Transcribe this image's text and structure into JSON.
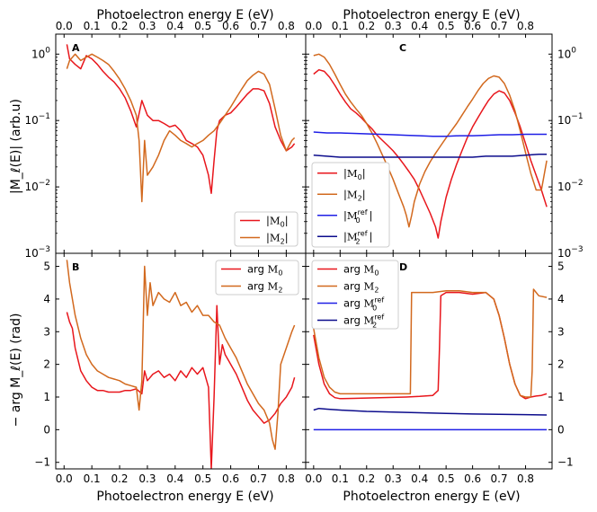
{
  "colors": {
    "M0": "#e8161c",
    "M2": "#d2691e",
    "M0ref": "#1f1fe6",
    "M2ref": "#0c0c8c"
  },
  "x_label": "Photoelectron energy E (eV)",
  "y_label_top": "|M_ℓ(E)| (arb.u)",
  "y_label_bottom": "− arg M_ℓ(E)  (rad)",
  "chart_data": [
    {
      "panel": "A",
      "type": "line",
      "yscale": "log",
      "xlabel": "Photoelectron energy E (eV)",
      "ylabel": "|M_ℓ(E)| (arb.u)",
      "xlim": [
        -0.03,
        0.87
      ],
      "ylim": [
        0.001,
        2.0
      ],
      "xticks": [
        "0.0",
        "0.1",
        "0.2",
        "0.3",
        "0.4",
        "0.5",
        "0.6",
        "0.7",
        "0.8"
      ],
      "yticks": [
        "10^0",
        "10^-1",
        "10^-2",
        "10^-3"
      ],
      "legend": "lower-right",
      "series": [
        {
          "name": "|M0|",
          "color_key": "M0",
          "x": [
            0.01,
            0.02,
            0.04,
            0.06,
            0.08,
            0.1,
            0.12,
            0.14,
            0.16,
            0.18,
            0.2,
            0.22,
            0.24,
            0.26,
            0.28,
            0.3,
            0.32,
            0.34,
            0.36,
            0.38,
            0.4,
            0.42,
            0.44,
            0.46,
            0.48,
            0.5,
            0.52,
            0.53,
            0.54,
            0.55,
            0.56,
            0.58,
            0.6,
            0.62,
            0.64,
            0.66,
            0.68,
            0.7,
            0.72,
            0.74,
            0.76,
            0.78,
            0.8,
            0.82,
            0.83
          ],
          "y": [
            1.4,
            0.85,
            0.7,
            0.6,
            0.95,
            0.85,
            0.7,
            0.55,
            0.45,
            0.38,
            0.3,
            0.22,
            0.14,
            0.08,
            0.2,
            0.12,
            0.1,
            0.1,
            0.09,
            0.08,
            0.085,
            0.07,
            0.05,
            0.045,
            0.04,
            0.03,
            0.015,
            0.008,
            0.025,
            0.07,
            0.1,
            0.12,
            0.13,
            0.16,
            0.2,
            0.25,
            0.3,
            0.3,
            0.28,
            0.18,
            0.08,
            0.05,
            0.035,
            0.04,
            0.045
          ]
        },
        {
          "name": "|M2|",
          "color_key": "M2",
          "x": [
            0.01,
            0.02,
            0.04,
            0.06,
            0.08,
            0.1,
            0.12,
            0.14,
            0.16,
            0.18,
            0.2,
            0.22,
            0.24,
            0.26,
            0.27,
            0.28,
            0.29,
            0.3,
            0.32,
            0.34,
            0.36,
            0.38,
            0.4,
            0.42,
            0.44,
            0.46,
            0.48,
            0.5,
            0.52,
            0.54,
            0.56,
            0.58,
            0.6,
            0.62,
            0.64,
            0.66,
            0.68,
            0.7,
            0.72,
            0.74,
            0.76,
            0.78,
            0.8,
            0.82,
            0.83
          ],
          "y": [
            0.6,
            0.8,
            1.0,
            0.8,
            0.9,
            1.0,
            0.9,
            0.8,
            0.7,
            0.55,
            0.42,
            0.3,
            0.2,
            0.12,
            0.05,
            0.006,
            0.05,
            0.015,
            0.02,
            0.03,
            0.05,
            0.07,
            0.06,
            0.05,
            0.045,
            0.04,
            0.045,
            0.05,
            0.06,
            0.07,
            0.09,
            0.12,
            0.16,
            0.22,
            0.3,
            0.4,
            0.48,
            0.55,
            0.5,
            0.35,
            0.15,
            0.06,
            0.035,
            0.05,
            0.055
          ]
        }
      ]
    },
    {
      "panel": "B",
      "type": "line",
      "yscale": "linear",
      "xlabel": "Photoelectron energy E (eV)",
      "ylabel": "− arg M_ℓ(E)  (rad)",
      "xlim": [
        -0.03,
        0.87
      ],
      "ylim": [
        -1.2,
        5.4
      ],
      "xticks": [
        "0.0",
        "0.1",
        "0.2",
        "0.3",
        "0.4",
        "0.5",
        "0.6",
        "0.7",
        "0.8"
      ],
      "yticks": [
        "−1",
        "0",
        "1",
        "2",
        "3",
        "4",
        "5"
      ],
      "legend": "top-right",
      "series": [
        {
          "name": "arg M0",
          "color_key": "M0",
          "x": [
            0.01,
            0.02,
            0.03,
            0.04,
            0.06,
            0.08,
            0.1,
            0.12,
            0.14,
            0.16,
            0.18,
            0.2,
            0.22,
            0.24,
            0.26,
            0.28,
            0.29,
            0.3,
            0.32,
            0.34,
            0.36,
            0.38,
            0.4,
            0.42,
            0.44,
            0.46,
            0.48,
            0.5,
            0.52,
            0.53,
            0.54,
            0.55,
            0.56,
            0.57,
            0.58,
            0.6,
            0.62,
            0.64,
            0.66,
            0.68,
            0.7,
            0.72,
            0.74,
            0.76,
            0.78,
            0.8,
            0.82,
            0.83
          ],
          "y": [
            3.6,
            3.3,
            3.1,
            2.5,
            1.8,
            1.5,
            1.3,
            1.2,
            1.2,
            1.15,
            1.15,
            1.15,
            1.2,
            1.2,
            1.25,
            1.1,
            1.8,
            1.5,
            1.7,
            1.8,
            1.6,
            1.7,
            1.5,
            1.8,
            1.6,
            1.9,
            1.7,
            1.9,
            1.3,
            -1.2,
            1.0,
            3.8,
            2.0,
            2.6,
            2.3,
            2.0,
            1.7,
            1.3,
            0.9,
            0.6,
            0.4,
            0.2,
            0.3,
            0.5,
            0.8,
            1.0,
            1.3,
            1.6
          ]
        },
        {
          "name": "arg M2",
          "color_key": "M2",
          "x": [
            0.01,
            0.02,
            0.03,
            0.04,
            0.06,
            0.08,
            0.1,
            0.12,
            0.14,
            0.16,
            0.18,
            0.2,
            0.22,
            0.24,
            0.26,
            0.27,
            0.28,
            0.29,
            0.3,
            0.31,
            0.32,
            0.34,
            0.36,
            0.38,
            0.4,
            0.42,
            0.44,
            0.46,
            0.48,
            0.5,
            0.52,
            0.54,
            0.56,
            0.58,
            0.6,
            0.62,
            0.64,
            0.66,
            0.68,
            0.7,
            0.72,
            0.74,
            0.75,
            0.76,
            0.77,
            0.78,
            0.8,
            0.82,
            0.83
          ],
          "y": [
            5.2,
            4.5,
            4.0,
            3.5,
            2.8,
            2.3,
            2.0,
            1.8,
            1.7,
            1.6,
            1.55,
            1.5,
            1.4,
            1.35,
            1.3,
            0.6,
            1.5,
            5.0,
            3.5,
            4.5,
            3.8,
            4.2,
            4.0,
            3.9,
            4.2,
            3.8,
            3.9,
            3.6,
            3.8,
            3.5,
            3.5,
            3.3,
            3.2,
            2.8,
            2.5,
            2.2,
            1.8,
            1.4,
            1.1,
            0.8,
            0.6,
            0.2,
            -0.3,
            -0.6,
            0.5,
            2.0,
            2.5,
            3.0,
            3.2
          ]
        }
      ]
    },
    {
      "panel": "C",
      "type": "line",
      "yscale": "log",
      "xlabel": "Photoelectron energy E (eV)",
      "ylabel": "|M_ℓ(E)| (arb.u)",
      "xlim": [
        -0.03,
        0.9
      ],
      "ylim": [
        0.001,
        2.0
      ],
      "xticks": [
        "0.0",
        "0.1",
        "0.2",
        "0.3",
        "0.4",
        "0.5",
        "0.6",
        "0.7",
        "0.8"
      ],
      "yticks": [
        "10^0",
        "10^-1",
        "10^-2",
        "10^-3"
      ],
      "legend": "lower-left",
      "series": [
        {
          "name": "|M0|",
          "color_key": "M0",
          "x": [
            0.0,
            0.02,
            0.04,
            0.06,
            0.08,
            0.1,
            0.12,
            0.14,
            0.16,
            0.18,
            0.2,
            0.22,
            0.24,
            0.26,
            0.28,
            0.3,
            0.32,
            0.34,
            0.36,
            0.38,
            0.4,
            0.42,
            0.44,
            0.46,
            0.47,
            0.48,
            0.5,
            0.52,
            0.54,
            0.56,
            0.58,
            0.6,
            0.62,
            0.64,
            0.66,
            0.68,
            0.7,
            0.72,
            0.74,
            0.76,
            0.78,
            0.8,
            0.82,
            0.84,
            0.86,
            0.88
          ],
          "y": [
            0.5,
            0.58,
            0.55,
            0.45,
            0.34,
            0.25,
            0.19,
            0.15,
            0.13,
            0.11,
            0.09,
            0.075,
            0.06,
            0.05,
            0.042,
            0.035,
            0.028,
            0.022,
            0.017,
            0.013,
            0.009,
            0.006,
            0.004,
            0.0025,
            0.0017,
            0.003,
            0.007,
            0.013,
            0.022,
            0.035,
            0.055,
            0.08,
            0.11,
            0.15,
            0.2,
            0.25,
            0.28,
            0.26,
            0.2,
            0.13,
            0.08,
            0.045,
            0.025,
            0.015,
            0.009,
            0.005
          ]
        },
        {
          "name": "|M2|",
          "color_key": "M2",
          "x": [
            0.0,
            0.02,
            0.04,
            0.06,
            0.08,
            0.1,
            0.12,
            0.14,
            0.16,
            0.18,
            0.2,
            0.22,
            0.24,
            0.26,
            0.28,
            0.3,
            0.32,
            0.34,
            0.35,
            0.36,
            0.37,
            0.38,
            0.4,
            0.42,
            0.44,
            0.46,
            0.48,
            0.5,
            0.52,
            0.54,
            0.56,
            0.58,
            0.6,
            0.62,
            0.64,
            0.66,
            0.68,
            0.7,
            0.72,
            0.74,
            0.76,
            0.78,
            0.8,
            0.82,
            0.84,
            0.86,
            0.88
          ],
          "y": [
            0.95,
            1.0,
            0.9,
            0.7,
            0.5,
            0.35,
            0.25,
            0.19,
            0.15,
            0.12,
            0.09,
            0.065,
            0.045,
            0.03,
            0.02,
            0.013,
            0.008,
            0.005,
            0.0037,
            0.0025,
            0.0037,
            0.006,
            0.011,
            0.017,
            0.024,
            0.032,
            0.042,
            0.055,
            0.07,
            0.09,
            0.12,
            0.16,
            0.21,
            0.28,
            0.36,
            0.43,
            0.47,
            0.45,
            0.36,
            0.24,
            0.14,
            0.07,
            0.033,
            0.016,
            0.009,
            0.009,
            0.025
          ]
        },
        {
          "name": "|M0^ref|",
          "color_key": "M0ref",
          "x": [
            0.0,
            0.05,
            0.1,
            0.15,
            0.2,
            0.25,
            0.3,
            0.35,
            0.4,
            0.45,
            0.5,
            0.55,
            0.6,
            0.65,
            0.7,
            0.75,
            0.8,
            0.85,
            0.88
          ],
          "y": [
            0.067,
            0.065,
            0.065,
            0.064,
            0.063,
            0.062,
            0.061,
            0.06,
            0.059,
            0.058,
            0.058,
            0.059,
            0.059,
            0.06,
            0.061,
            0.061,
            0.062,
            0.062,
            0.062
          ]
        },
        {
          "name": "|M2^ref|",
          "color_key": "M2ref",
          "x": [
            0.0,
            0.05,
            0.1,
            0.15,
            0.2,
            0.25,
            0.3,
            0.35,
            0.4,
            0.45,
            0.5,
            0.55,
            0.6,
            0.65,
            0.7,
            0.75,
            0.8,
            0.85,
            0.88
          ],
          "y": [
            0.03,
            0.029,
            0.028,
            0.028,
            0.028,
            0.028,
            0.028,
            0.028,
            0.028,
            0.028,
            0.028,
            0.028,
            0.028,
            0.029,
            0.029,
            0.029,
            0.03,
            0.031,
            0.031
          ]
        }
      ]
    },
    {
      "panel": "D",
      "type": "line",
      "yscale": "linear",
      "xlabel": "Photoelectron energy E (eV)",
      "ylabel": "− arg M_ℓ(E)  (rad)",
      "xlim": [
        -0.03,
        0.9
      ],
      "ylim": [
        -1.2,
        5.4
      ],
      "xticks": [
        "0.0",
        "0.1",
        "0.2",
        "0.3",
        "0.4",
        "0.5",
        "0.6",
        "0.7",
        "0.8"
      ],
      "yticks": [
        "−1",
        "0",
        "1",
        "2",
        "3",
        "4",
        "5"
      ],
      "legend": "top-left",
      "series": [
        {
          "name": "arg M0",
          "color_key": "M0",
          "x": [
            0.0,
            0.02,
            0.04,
            0.06,
            0.08,
            0.1,
            0.15,
            0.2,
            0.25,
            0.3,
            0.35,
            0.4,
            0.45,
            0.47,
            0.475,
            0.48,
            0.5,
            0.55,
            0.6,
            0.65,
            0.68,
            0.7,
            0.72,
            0.74,
            0.76,
            0.78,
            0.8,
            0.82,
            0.84,
            0.86,
            0.88
          ],
          "y": [
            2.9,
            2.0,
            1.4,
            1.1,
            0.98,
            0.95,
            0.96,
            0.97,
            0.98,
            0.99,
            1.0,
            1.02,
            1.05,
            1.2,
            2.5,
            4.1,
            4.2,
            4.2,
            4.15,
            4.2,
            4.0,
            3.5,
            2.8,
            2.0,
            1.4,
            1.05,
            0.95,
            1.0,
            1.03,
            1.05,
            1.1
          ]
        },
        {
          "name": "arg M2",
          "color_key": "M2",
          "x": [
            0.0,
            0.02,
            0.04,
            0.06,
            0.08,
            0.1,
            0.15,
            0.2,
            0.25,
            0.3,
            0.35,
            0.365,
            0.37,
            0.4,
            0.45,
            0.5,
            0.55,
            0.6,
            0.65,
            0.68,
            0.7,
            0.72,
            0.74,
            0.76,
            0.78,
            0.8,
            0.82,
            0.825,
            0.83,
            0.85,
            0.88
          ],
          "y": [
            3.1,
            2.2,
            1.6,
            1.3,
            1.15,
            1.1,
            1.1,
            1.1,
            1.1,
            1.1,
            1.1,
            1.1,
            4.2,
            4.2,
            4.2,
            4.25,
            4.25,
            4.2,
            4.2,
            4.0,
            3.5,
            2.8,
            2.0,
            1.4,
            1.05,
            1.0,
            1.0,
            1.8,
            4.3,
            4.1,
            4.05
          ]
        },
        {
          "name": "arg M0^ref",
          "color_key": "M0ref",
          "x": [
            0.0,
            0.88
          ],
          "y": [
            0.0,
            0.0
          ]
        },
        {
          "name": "arg M2^ref",
          "color_key": "M2ref",
          "x": [
            0.0,
            0.02,
            0.05,
            0.1,
            0.15,
            0.2,
            0.3,
            0.4,
            0.5,
            0.6,
            0.7,
            0.8,
            0.88
          ],
          "y": [
            0.6,
            0.65,
            0.63,
            0.6,
            0.58,
            0.56,
            0.54,
            0.52,
            0.5,
            0.48,
            0.47,
            0.46,
            0.45
          ]
        }
      ]
    }
  ]
}
